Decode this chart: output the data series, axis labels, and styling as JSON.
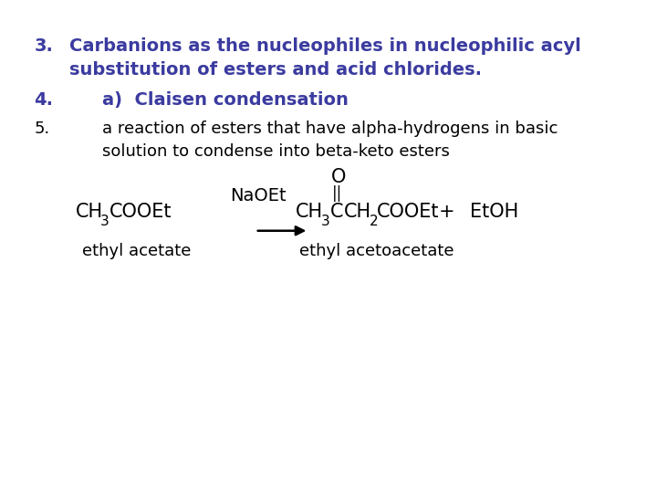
{
  "background_color": "#ffffff",
  "blue_color": "#3b3ba0",
  "black_color": "#000000",
  "line1_num": "3.",
  "line1_text": "Carbanions as the nucleophiles in nucleophilic acyl",
  "line1b_indent": 0.105,
  "line1b_text": "substitution of esters and acid chlorides.",
  "line2_num": "4.",
  "line2_text": "a)  Claisen condensation",
  "line3_num": "5.",
  "line3_text": "a reaction of esters that have alpha-hydrogens in basic",
  "line3b_text": "solution to condense into beta-keto esters",
  "reactant_label": "ethyl acetate",
  "arrow_label": "NaOEt",
  "product_label": "ethyl acetoacetate",
  "plus": "+",
  "byproduct": "EtOH",
  "fs_title": 14,
  "fs_body": 13,
  "fs_chem": 15,
  "fs_sub": 11,
  "fs_label": 13
}
